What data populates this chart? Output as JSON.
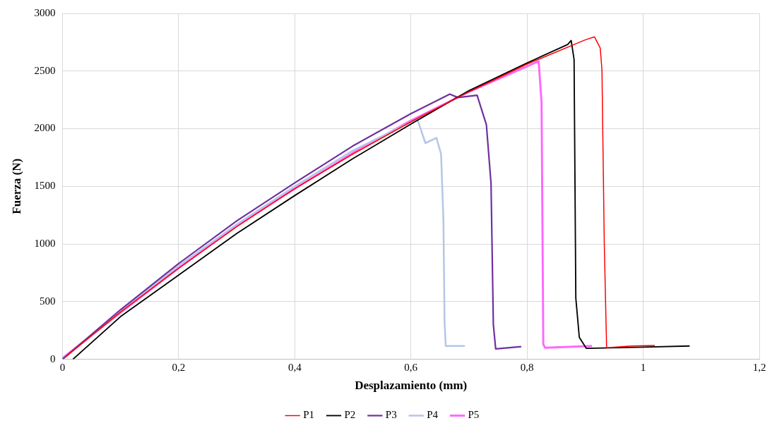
{
  "chart_data": {
    "type": "line",
    "xlabel": "Desplazamiento (mm)",
    "ylabel": "Fuerza (N)",
    "xlim": [
      0,
      1.2
    ],
    "ylim": [
      0,
      3000
    ],
    "xticks": [
      0,
      {
        "value": 0.2,
        "label": "0,2"
      },
      {
        "value": 0.4,
        "label": "0,4"
      },
      {
        "value": 0.6,
        "label": "0,6"
      },
      {
        "value": 0.8,
        "label": "0,8"
      },
      1,
      {
        "value": 1.2,
        "label": "1,2"
      }
    ],
    "yticks": [
      0,
      500,
      1000,
      1500,
      2000,
      2500,
      3000
    ],
    "grid": true,
    "legend": "bottom",
    "marker": "none",
    "line_style": "solid",
    "series": [
      {
        "name": "P1",
        "color": "#ff0000",
        "x": [
          0.005,
          0.1,
          0.2,
          0.3,
          0.4,
          0.5,
          0.6,
          0.7,
          0.8,
          0.9,
          0.916,
          0.926,
          0.929,
          0.933,
          0.937,
          0.98,
          1.02
        ],
        "values": [
          20,
          410,
          790,
          1150,
          1480,
          1780,
          2060,
          2320,
          2560,
          2770,
          2797,
          2700,
          2510,
          1000,
          100,
          115,
          120
        ]
      },
      {
        "name": "P2",
        "color": "#000000",
        "x": [
          0.018,
          0.1,
          0.2,
          0.3,
          0.4,
          0.5,
          0.6,
          0.7,
          0.8,
          0.87,
          0.876,
          0.881,
          0.884,
          0.89,
          0.902,
          1.0,
          1.08
        ],
        "values": [
          0,
          370,
          730,
          1090,
          1420,
          1740,
          2040,
          2330,
          2570,
          2730,
          2765,
          2600,
          530,
          190,
          95,
          105,
          115
        ]
      },
      {
        "name": "P3",
        "color": "#7030a0",
        "x": [
          0,
          0.1,
          0.2,
          0.3,
          0.4,
          0.5,
          0.6,
          0.667,
          0.681,
          0.714,
          0.73,
          0.738,
          0.742,
          0.746,
          0.79
        ],
        "values": [
          0,
          430,
          830,
          1200,
          1530,
          1850,
          2130,
          2300,
          2270,
          2290,
          2035,
          1525,
          300,
          90,
          110
        ]
      },
      {
        "name": "P4",
        "color": "#b4c7e7",
        "x": [
          0,
          0.1,
          0.2,
          0.3,
          0.4,
          0.5,
          0.611,
          0.625,
          0.644,
          0.652,
          0.656,
          0.658,
          0.66,
          0.693
        ],
        "values": [
          0,
          415,
          810,
          1170,
          1500,
          1810,
          2085,
          1875,
          1920,
          1780,
          1210,
          320,
          115,
          115
        ]
      },
      {
        "name": "P5",
        "color": "#ff66ff",
        "x": [
          0,
          0.1,
          0.2,
          0.3,
          0.4,
          0.5,
          0.6,
          0.7,
          0.8,
          0.82,
          0.825,
          0.828,
          0.831,
          0.912
        ],
        "values": [
          10,
          405,
          790,
          1160,
          1480,
          1790,
          2070,
          2320,
          2540,
          2585,
          2225,
          130,
          100,
          115
        ]
      }
    ]
  }
}
